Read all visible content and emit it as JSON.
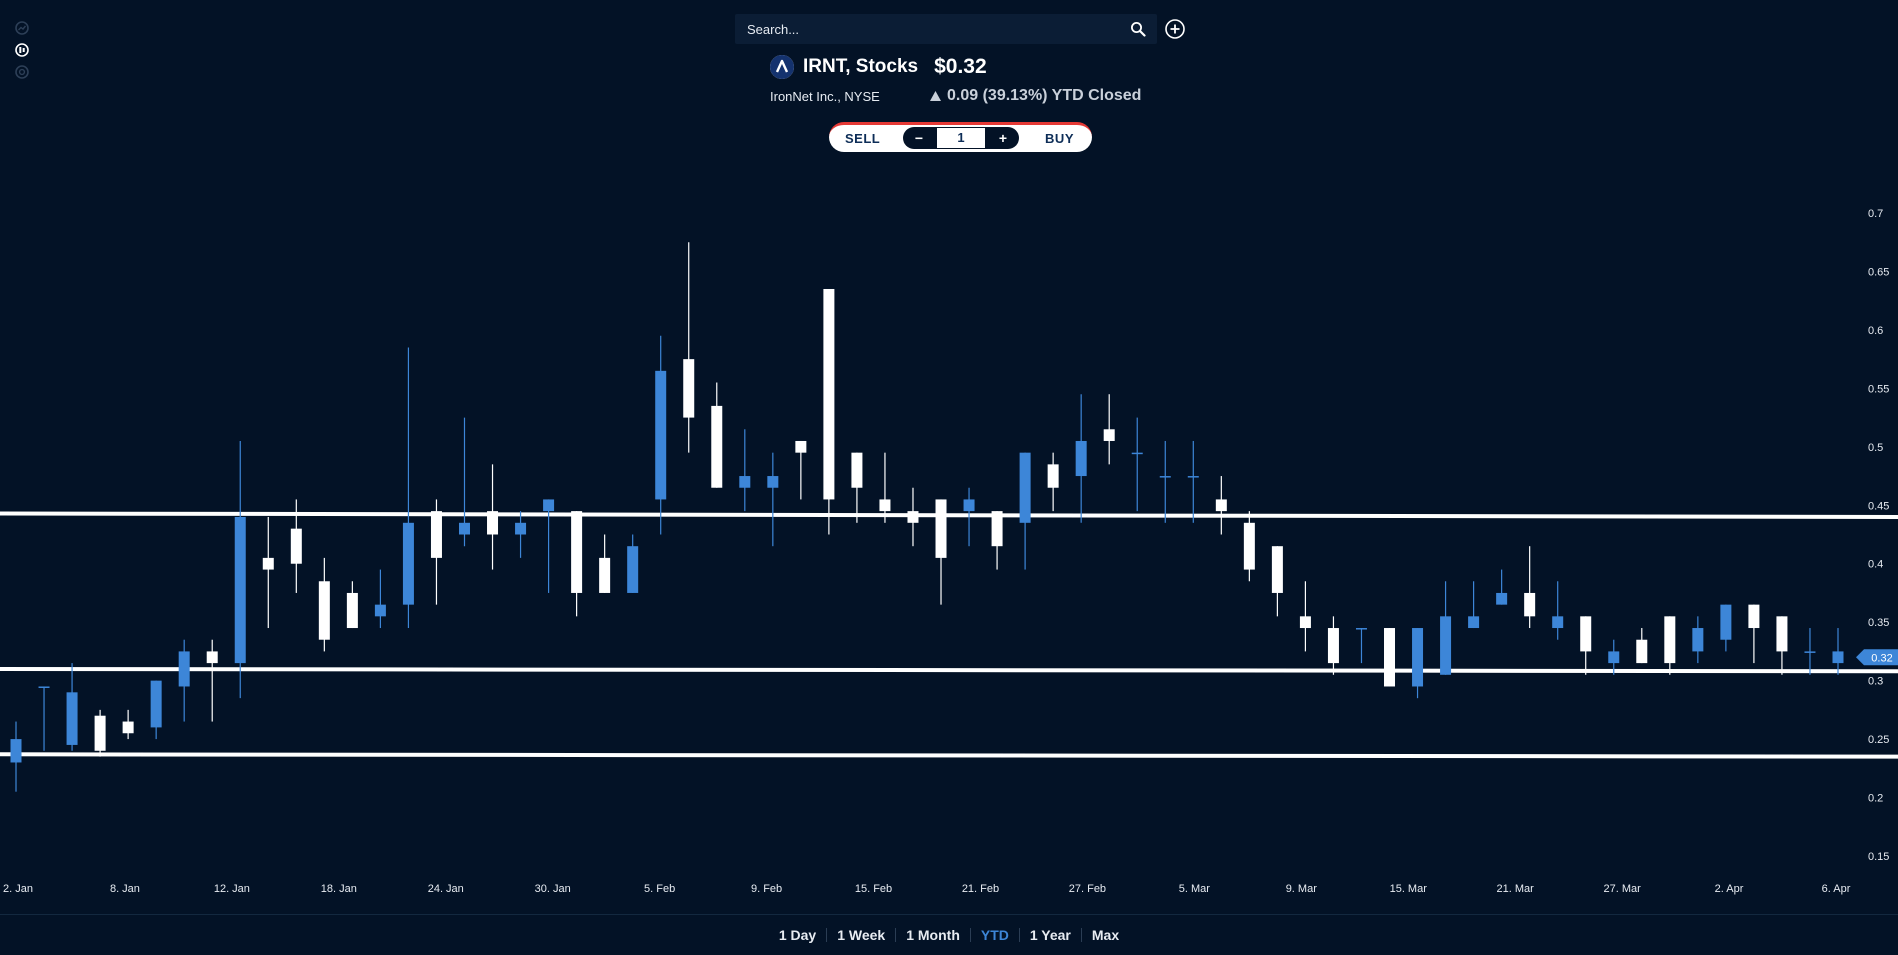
{
  "search": {
    "placeholder": "Search..."
  },
  "quote": {
    "symbol": "IRNT, Stocks",
    "price": "$0.32",
    "company": "IronNet Inc., NYSE",
    "change": "0.09 (39.13%) YTD Closed"
  },
  "trade": {
    "sell_label": "SELL",
    "buy_label": "BUY",
    "quantity": "1",
    "minus": "−",
    "plus": "+"
  },
  "time_ranges": [
    "1 Day",
    "1 Week",
    "1 Month",
    "YTD",
    "1 Year",
    "Max"
  ],
  "active_range": "YTD",
  "colors": {
    "background": "#031226",
    "up": "#ffffff",
    "down": "#3d86d8",
    "trendline": "#ffffff",
    "active": "#3d86d8"
  },
  "chart_data": {
    "type": "candlestick",
    "title": "",
    "xlabel": "",
    "ylabel": "",
    "ylim": [
      0.14,
      0.72
    ],
    "y_ticks": [
      0.15,
      0.2,
      0.25,
      0.3,
      0.35,
      0.4,
      0.45,
      0.5,
      0.55,
      0.6,
      0.65,
      0.7
    ],
    "x_tick_labels": [
      "2. Jan",
      "8. Jan",
      "12. Jan",
      "18. Jan",
      "24. Jan",
      "30. Jan",
      "5. Feb",
      "9. Feb",
      "15. Feb",
      "21. Feb",
      "27. Feb",
      "5. Mar",
      "9. Mar",
      "15. Mar",
      "21. Mar",
      "27. Mar",
      "2. Apr",
      "6. Apr"
    ],
    "last_price_label": "0.32",
    "last_price": 0.32,
    "trendlines": [
      {
        "from": 0.443,
        "to": 0.44
      },
      {
        "from": 0.31,
        "to": 0.308
      },
      {
        "from": 0.237,
        "to": 0.235
      }
    ],
    "candles": [
      {
        "o": 0.23,
        "h": 0.265,
        "l": 0.205,
        "c": 0.25
      },
      {
        "o": 0.295,
        "h": 0.295,
        "l": 0.24,
        "c": 0.295
      },
      {
        "o": 0.245,
        "h": 0.315,
        "l": 0.24,
        "c": 0.29
      },
      {
        "o": 0.27,
        "h": 0.275,
        "l": 0.235,
        "c": 0.24
      },
      {
        "o": 0.265,
        "h": 0.275,
        "l": 0.25,
        "c": 0.255
      },
      {
        "o": 0.26,
        "h": 0.3,
        "l": 0.25,
        "c": 0.3
      },
      {
        "o": 0.295,
        "h": 0.335,
        "l": 0.265,
        "c": 0.325
      },
      {
        "o": 0.325,
        "h": 0.335,
        "l": 0.265,
        "c": 0.315
      },
      {
        "o": 0.315,
        "h": 0.505,
        "l": 0.285,
        "c": 0.44
      },
      {
        "o": 0.405,
        "h": 0.44,
        "l": 0.345,
        "c": 0.395
      },
      {
        "o": 0.43,
        "h": 0.455,
        "l": 0.375,
        "c": 0.4
      },
      {
        "o": 0.385,
        "h": 0.405,
        "l": 0.325,
        "c": 0.335
      },
      {
        "o": 0.375,
        "h": 0.385,
        "l": 0.345,
        "c": 0.345
      },
      {
        "o": 0.355,
        "h": 0.395,
        "l": 0.345,
        "c": 0.365
      },
      {
        "o": 0.365,
        "h": 0.585,
        "l": 0.345,
        "c": 0.435
      },
      {
        "o": 0.445,
        "h": 0.455,
        "l": 0.365,
        "c": 0.405
      },
      {
        "o": 0.425,
        "h": 0.525,
        "l": 0.415,
        "c": 0.435
      },
      {
        "o": 0.445,
        "h": 0.485,
        "l": 0.395,
        "c": 0.425
      },
      {
        "o": 0.425,
        "h": 0.445,
        "l": 0.405,
        "c": 0.435
      },
      {
        "o": 0.445,
        "h": 0.455,
        "l": 0.375,
        "c": 0.455
      },
      {
        "o": 0.445,
        "h": 0.445,
        "l": 0.355,
        "c": 0.375
      },
      {
        "o": 0.405,
        "h": 0.425,
        "l": 0.375,
        "c": 0.375
      },
      {
        "o": 0.375,
        "h": 0.425,
        "l": 0.375,
        "c": 0.415
      },
      {
        "o": 0.455,
        "h": 0.595,
        "l": 0.425,
        "c": 0.565
      },
      {
        "o": 0.575,
        "h": 0.675,
        "l": 0.495,
        "c": 0.525
      },
      {
        "o": 0.535,
        "h": 0.555,
        "l": 0.465,
        "c": 0.465
      },
      {
        "o": 0.465,
        "h": 0.515,
        "l": 0.445,
        "c": 0.475
      },
      {
        "o": 0.465,
        "h": 0.495,
        "l": 0.415,
        "c": 0.475
      },
      {
        "o": 0.505,
        "h": 0.505,
        "l": 0.455,
        "c": 0.495
      },
      {
        "o": 0.635,
        "h": 0.635,
        "l": 0.425,
        "c": 0.455
      },
      {
        "o": 0.495,
        "h": 0.495,
        "l": 0.435,
        "c": 0.465
      },
      {
        "o": 0.455,
        "h": 0.495,
        "l": 0.435,
        "c": 0.445
      },
      {
        "o": 0.445,
        "h": 0.465,
        "l": 0.415,
        "c": 0.435
      },
      {
        "o": 0.455,
        "h": 0.455,
        "l": 0.365,
        "c": 0.405
      },
      {
        "o": 0.445,
        "h": 0.465,
        "l": 0.415,
        "c": 0.455
      },
      {
        "o": 0.445,
        "h": 0.445,
        "l": 0.395,
        "c": 0.415
      },
      {
        "o": 0.435,
        "h": 0.495,
        "l": 0.395,
        "c": 0.495
      },
      {
        "o": 0.485,
        "h": 0.495,
        "l": 0.445,
        "c": 0.465
      },
      {
        "o": 0.475,
        "h": 0.545,
        "l": 0.435,
        "c": 0.505
      },
      {
        "o": 0.515,
        "h": 0.545,
        "l": 0.485,
        "c": 0.505
      },
      {
        "o": 0.495,
        "h": 0.525,
        "l": 0.445,
        "c": 0.495
      },
      {
        "o": 0.475,
        "h": 0.505,
        "l": 0.435,
        "c": 0.475
      },
      {
        "o": 0.475,
        "h": 0.505,
        "l": 0.435,
        "c": 0.475
      },
      {
        "o": 0.455,
        "h": 0.475,
        "l": 0.425,
        "c": 0.445
      },
      {
        "o": 0.435,
        "h": 0.445,
        "l": 0.385,
        "c": 0.395
      },
      {
        "o": 0.415,
        "h": 0.415,
        "l": 0.355,
        "c": 0.375
      },
      {
        "o": 0.355,
        "h": 0.385,
        "l": 0.325,
        "c": 0.345
      },
      {
        "o": 0.345,
        "h": 0.355,
        "l": 0.305,
        "c": 0.315
      },
      {
        "o": 0.345,
        "h": 0.345,
        "l": 0.315,
        "c": 0.345
      },
      {
        "o": 0.345,
        "h": 0.345,
        "l": 0.295,
        "c": 0.295
      },
      {
        "o": 0.295,
        "h": 0.345,
        "l": 0.285,
        "c": 0.345
      },
      {
        "o": 0.305,
        "h": 0.385,
        "l": 0.305,
        "c": 0.355
      },
      {
        "o": 0.345,
        "h": 0.385,
        "l": 0.345,
        "c": 0.355
      },
      {
        "o": 0.365,
        "h": 0.395,
        "l": 0.365,
        "c": 0.375
      },
      {
        "o": 0.375,
        "h": 0.415,
        "l": 0.345,
        "c": 0.355
      },
      {
        "o": 0.345,
        "h": 0.385,
        "l": 0.335,
        "c": 0.355
      },
      {
        "o": 0.355,
        "h": 0.355,
        "l": 0.305,
        "c": 0.325
      },
      {
        "o": 0.315,
        "h": 0.335,
        "l": 0.305,
        "c": 0.325
      },
      {
        "o": 0.335,
        "h": 0.345,
        "l": 0.315,
        "c": 0.315
      },
      {
        "o": 0.355,
        "h": 0.355,
        "l": 0.305,
        "c": 0.315
      },
      {
        "o": 0.325,
        "h": 0.355,
        "l": 0.315,
        "c": 0.345
      },
      {
        "o": 0.335,
        "h": 0.365,
        "l": 0.325,
        "c": 0.365
      },
      {
        "o": 0.365,
        "h": 0.365,
        "l": 0.315,
        "c": 0.345
      },
      {
        "o": 0.355,
        "h": 0.355,
        "l": 0.305,
        "c": 0.325
      },
      {
        "o": 0.325,
        "h": 0.345,
        "l": 0.305,
        "c": 0.325
      },
      {
        "o": 0.315,
        "h": 0.345,
        "l": 0.305,
        "c": 0.325
      }
    ]
  }
}
